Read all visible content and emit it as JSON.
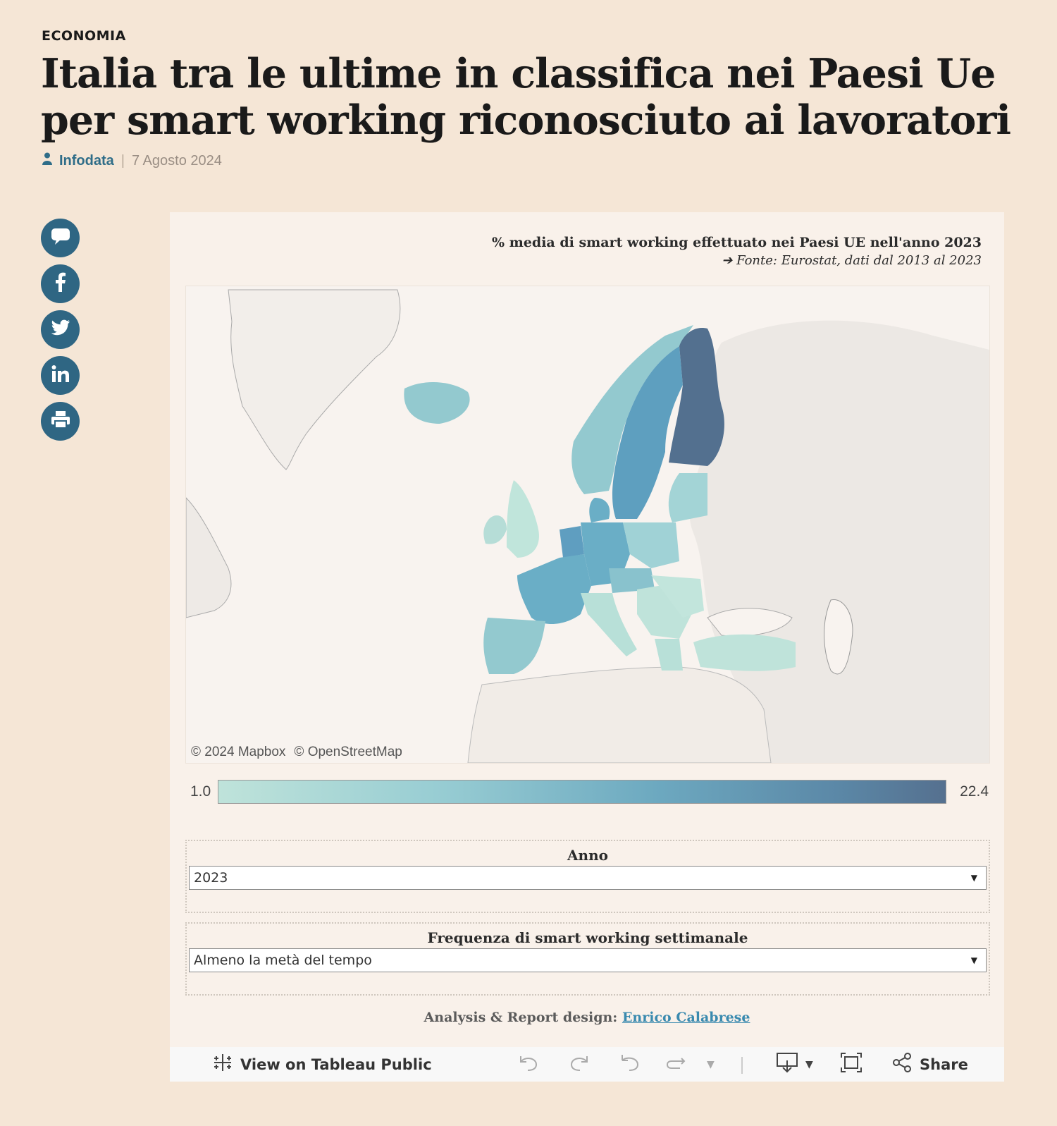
{
  "article": {
    "section": "ECONOMIA",
    "title": "Italia tra le ultime in classifica nei Paesi Ue per smart working riconosciuto ai lavoratori",
    "author": "Infodata",
    "date": "7 Agosto 2024"
  },
  "social": {
    "icons": [
      "comment-icon",
      "facebook-icon",
      "twitter-icon",
      "linkedin-icon",
      "print-icon"
    ],
    "color": "#2f6683"
  },
  "viz": {
    "title": "% media di smart working effettuato nei Paesi UE nell'anno 2023",
    "source": "➔ Fonte:  Eurostat, dati dal 2013 al 2023",
    "attribution": [
      "© 2024 Mapbox",
      "© OpenStreetMap"
    ],
    "legend": {
      "min": "1.0",
      "max": "22.4",
      "colors": [
        "#bfe3da",
        "#55708f"
      ]
    },
    "filters": [
      {
        "label": "Anno",
        "value": "2023"
      },
      {
        "label": "Frequenza di smart working settimanale",
        "value": "Almeno la metà del tempo"
      }
    ],
    "credit": {
      "prefix": "Analysis & Report design:",
      "name": "Enrico Calabrese"
    },
    "toolbar": {
      "view_label": "View on Tableau Public",
      "share_label": "Share"
    }
  }
}
